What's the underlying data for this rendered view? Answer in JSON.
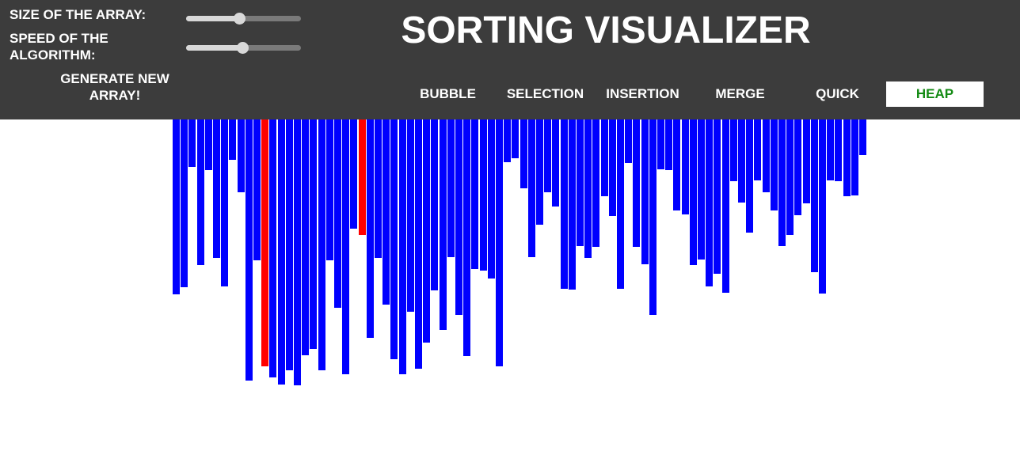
{
  "header": {
    "size_label": "SIZE OF THE ARRAY:",
    "speed_label": "SPEED OF THE ALGORITHM:",
    "generate_label": "GENERATE NEW ARRAY!",
    "title": "SORTING VISUALIZER",
    "size_slider": {
      "fraction": 0.46
    },
    "speed_slider": {
      "fraction": 0.49
    }
  },
  "algorithms": [
    {
      "label": "BUBBLE",
      "selected": false
    },
    {
      "label": "SELECTION",
      "selected": false
    },
    {
      "label": "INSERTION",
      "selected": false
    },
    {
      "label": "MERGE",
      "selected": false
    },
    {
      "label": "QUICK",
      "selected": false
    },
    {
      "label": "HEAP",
      "selected": true
    }
  ],
  "colors": {
    "header_bg": "#3c3c3c",
    "bar_default": "#0000ff",
    "bar_compare": "#ff0000",
    "selected_text": "#138a13",
    "selected_bg": "#ffffff"
  },
  "array": {
    "values": [
      221,
      212,
      60,
      184,
      64,
      175,
      211,
      51,
      92,
      330,
      178,
      312,
      326,
      335,
      317,
      336,
      298,
      290,
      317,
      178,
      238,
      322,
      138,
      146,
      276,
      175,
      234,
      303,
      322,
      243,
      315,
      282,
      216,
      266,
      174,
      247,
      299,
      189,
      191,
      201,
      312,
      54,
      49,
      87,
      174,
      133,
      92,
      110,
      214,
      215,
      160,
      175,
      161,
      97,
      122,
      214,
      55,
      161,
      183,
      247,
      63,
      64,
      115,
      120,
      184,
      177,
      211,
      195,
      219,
      78,
      105,
      143,
      77,
      92,
      115,
      160,
      146,
      121,
      106,
      193,
      220,
      77,
      78,
      97,
      96,
      45
    ],
    "highlighted_indices": [
      11,
      23
    ]
  }
}
